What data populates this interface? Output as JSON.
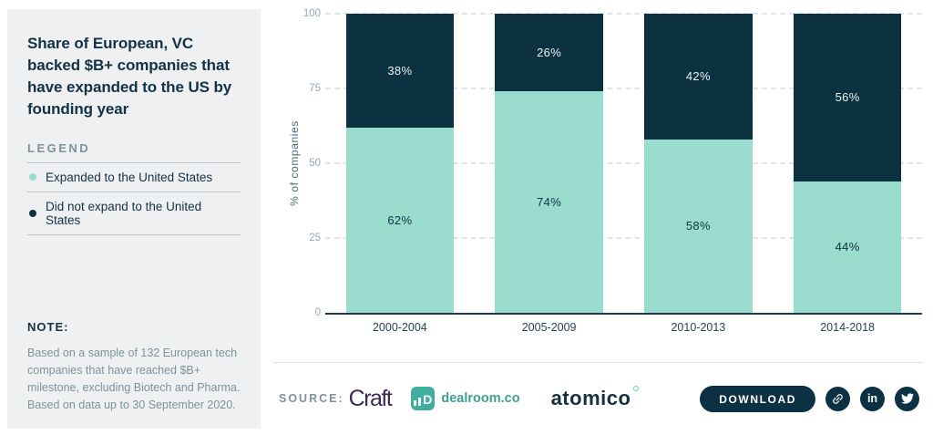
{
  "panel": {
    "title": "Share of European, VC backed $B+ companies that have expanded to the US by founding year",
    "legend_title": "LEGEND",
    "legend_items": [
      {
        "label": "Expanded to the United States",
        "color": "#9adccd"
      },
      {
        "label": "Did not expand to the United States",
        "color": "#0c3242"
      }
    ],
    "note_title": "NOTE:",
    "note_body": "Based on a sample of 132 European tech companies that have reached $B+ milestone, excluding Biotech and Pharma. Based on data up to 30 September 2020."
  },
  "chart_data": {
    "type": "bar",
    "stacked": true,
    "categories": [
      "2000-2004",
      "2005-2009",
      "2010-2013",
      "2014-2018"
    ],
    "series": [
      {
        "name": "Expanded to the United States",
        "color": "#9adccd",
        "label_color": "#0e3344",
        "values": [
          62,
          74,
          58,
          44
        ]
      },
      {
        "name": "Did not expand to the United States",
        "color": "#0c3242",
        "label_color": "#e9f1f3",
        "values": [
          38,
          26,
          42,
          56
        ]
      }
    ],
    "title": "Share of European, VC backed $B+ companies that have expanded to the US by founding year",
    "xlabel": "",
    "ylabel": "% of companies",
    "yticks": [
      0,
      25,
      50,
      75,
      100
    ],
    "ylim": [
      0,
      100
    ],
    "value_suffix": "%",
    "grid": "dashed horizontal gridlines at yticks, solid dark baseline",
    "legend_position": "left panel"
  },
  "footer": {
    "source_label": "SOURCE:",
    "craft_label": "Craft",
    "dealroom_icon_letter": "D",
    "dealroom_label": "dealroom.co",
    "atomico_label": "atomico",
    "download_label": "DOWNLOAD",
    "social_icons": [
      "link",
      "linkedin",
      "twitter"
    ],
    "linkedin_glyph": "in"
  },
  "colors": {
    "panel_bg": "#eef0f1",
    "page_bg": "#ffffff",
    "dark_navy": "#0c3242",
    "teal": "#9adccd",
    "muted_text": "#7e929c",
    "craft_purple": "#3d2a55",
    "dealroom_teal": "#3fae9f",
    "atomico_navy": "#16323e"
  }
}
